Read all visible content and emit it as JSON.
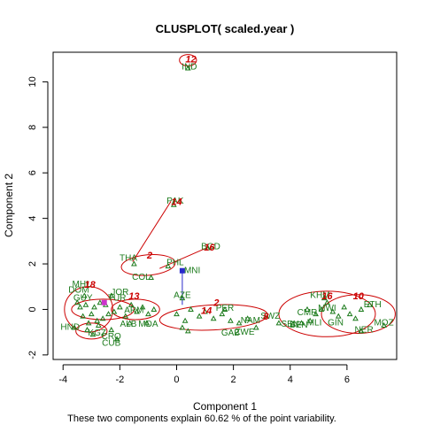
{
  "chart_data": {
    "type": "scatter",
    "title": "CLUSPLOT( scaled.year )",
    "xlabel": "Component 1",
    "ylabel": "Component 2",
    "subtitle": "These two components explain 60.62 % of the point variability.",
    "xlim": [
      -4.35,
      7.75
    ],
    "ylim": [
      -2.2,
      11.3
    ],
    "x_ticks": [
      -4,
      -2,
      0,
      2,
      4,
      6
    ],
    "y_ticks": [
      -2,
      0,
      2,
      4,
      6,
      8,
      10
    ],
    "colors": {
      "points": "#1b7a1b",
      "ellipses": "#cc0000",
      "cluster_labels": "#cc0000",
      "special_point": "#2a2acc",
      "special_point_alt": "#cc33cc"
    },
    "ellipses": [
      {
        "cx": 0.4,
        "cy": 10.95,
        "rx": 0.3,
        "ry": 0.25,
        "angle": 0
      },
      {
        "cx": -1.0,
        "cy": 1.95,
        "rx": 0.95,
        "ry": 0.45,
        "angle": -5
      },
      {
        "cx": -3.1,
        "cy": 0.0,
        "rx": 0.85,
        "ry": 1.0,
        "angle": 0
      },
      {
        "cx": -1.45,
        "cy": 0.0,
        "rx": 0.85,
        "ry": 0.45,
        "angle": 0
      },
      {
        "cx": 1.3,
        "cy": -0.35,
        "rx": 1.9,
        "ry": 0.55,
        "angle": -3
      },
      {
        "cx": 5.3,
        "cy": -0.2,
        "rx": 1.7,
        "ry": 1.0,
        "angle": 0
      },
      {
        "cx": 6.4,
        "cy": -0.2,
        "rx": 1.3,
        "ry": 0.85,
        "angle": 0
      },
      {
        "cx": -3.0,
        "cy": -0.95,
        "rx": 0.55,
        "ry": 0.35,
        "angle": 0
      },
      {
        "cx": -2.6,
        "cy": 0.0,
        "rx": 1.1,
        "ry": 0.45,
        "angle": 0
      }
    ],
    "segments": [
      {
        "x1": -0.2,
        "y1": 4.75,
        "x2": -1.55,
        "y2": 2.1
      },
      {
        "x1": 1.05,
        "y1": 2.7,
        "x2": -0.6,
        "y2": 1.8
      }
    ],
    "blue_segment": {
      "x1": 0.2,
      "y1": 1.8,
      "x2": 0.2,
      "y2": 0.2
    },
    "point_labels": [
      {
        "text": "IND",
        "x": 0.45,
        "y": 10.7
      },
      {
        "text": "PAK",
        "x": -0.05,
        "y": 4.8
      },
      {
        "text": "BGD",
        "x": 1.2,
        "y": 2.8
      },
      {
        "text": "THA",
        "x": -1.7,
        "y": 2.3
      },
      {
        "text": "PHL",
        "x": -0.05,
        "y": 2.1
      },
      {
        "text": "MNI",
        "x": 0.55,
        "y": 1.75
      },
      {
        "text": "COL",
        "x": -1.25,
        "y": 1.45
      },
      {
        "text": "JOR",
        "x": -2.0,
        "y": 0.8
      },
      {
        "text": "AZE",
        "x": 0.2,
        "y": 0.65
      },
      {
        "text": "PER",
        "x": 1.7,
        "y": 0.1
      },
      {
        "text": "KHM",
        "x": 5.05,
        "y": 0.65
      },
      {
        "text": "ETH",
        "x": 6.9,
        "y": 0.25
      },
      {
        "text": "MOZ",
        "x": 7.3,
        "y": -0.55
      },
      {
        "text": "NER",
        "x": 6.6,
        "y": -0.85
      },
      {
        "text": "SWZ",
        "x": 3.3,
        "y": -0.25
      },
      {
        "text": "NAM",
        "x": 2.6,
        "y": -0.45
      },
      {
        "text": "ZWE",
        "x": 2.4,
        "y": -0.95
      },
      {
        "text": "GAB",
        "x": 1.9,
        "y": -1.0
      },
      {
        "text": "ALB",
        "x": -1.7,
        "y": -0.6
      },
      {
        "text": "MDA",
        "x": -1.0,
        "y": -0.6
      },
      {
        "text": "ARM",
        "x": -1.5,
        "y": 0.0
      },
      {
        "text": "MLI",
        "x": 4.85,
        "y": -0.55
      },
      {
        "text": "CMR",
        "x": 4.6,
        "y": -0.1
      },
      {
        "text": "SEN",
        "x": 4.0,
        "y": -0.6
      },
      {
        "text": "BEN",
        "x": 4.3,
        "y": -0.65
      },
      {
        "text": "MWI",
        "x": 5.3,
        "y": 0.1
      },
      {
        "text": "GIN",
        "x": 5.6,
        "y": -0.55
      },
      {
        "text": "MHL",
        "x": -3.35,
        "y": 1.15
      },
      {
        "text": "DOM",
        "x": -3.45,
        "y": 0.9
      },
      {
        "text": "GUY",
        "x": -3.3,
        "y": 0.55
      },
      {
        "text": "HND",
        "x": -3.75,
        "y": -0.75
      },
      {
        "text": "KGZ",
        "x": -2.8,
        "y": -1.0
      },
      {
        "text": "CRO",
        "x": -2.3,
        "y": -1.15
      },
      {
        "text": "CUB",
        "x": -2.3,
        "y": -1.45
      },
      {
        "text": "TUR",
        "x": -2.1,
        "y": 0.55
      }
    ],
    "cluster_labels": [
      {
        "text": "12",
        "x": 0.5,
        "y": 11.0
      },
      {
        "text": "14",
        "x": 0.0,
        "y": 4.75
      },
      {
        "text": "16",
        "x": 1.15,
        "y": 2.75
      },
      {
        "text": "2",
        "x": -0.95,
        "y": 2.4
      },
      {
        "text": "18",
        "x": -3.05,
        "y": 1.1
      },
      {
        "text": "13",
        "x": -1.5,
        "y": 0.6
      },
      {
        "text": "2",
        "x": 1.4,
        "y": 0.3
      },
      {
        "text": "14",
        "x": 1.05,
        "y": -0.05
      },
      {
        "text": "16",
        "x": 5.3,
        "y": 0.6
      },
      {
        "text": "10",
        "x": 6.4,
        "y": 0.6
      },
      {
        "text": "8",
        "x": 3.15,
        "y": -0.3
      }
    ],
    "points_green": [
      [
        -3.6,
        -0.8
      ],
      [
        -3.3,
        -0.3
      ],
      [
        -3.2,
        0.2
      ],
      [
        -3.0,
        -0.2
      ],
      [
        -2.9,
        0.1
      ],
      [
        -2.8,
        -0.5
      ],
      [
        -2.7,
        0.3
      ],
      [
        -3.1,
        -0.6
      ],
      [
        -2.95,
        -1.1
      ],
      [
        -2.6,
        -0.4
      ],
      [
        -2.5,
        0.2
      ],
      [
        -2.4,
        -0.2
      ],
      [
        -3.4,
        0.1
      ],
      [
        -3.25,
        0.6
      ],
      [
        -3.5,
        0.3
      ],
      [
        -2.2,
        -0.1
      ],
      [
        -2.0,
        0.1
      ],
      [
        -1.8,
        -0.3
      ],
      [
        -1.6,
        0.2
      ],
      [
        -1.4,
        -0.1
      ],
      [
        -1.2,
        0.1
      ],
      [
        -1.0,
        -0.2
      ],
      [
        -0.8,
        0.0
      ],
      [
        -2.3,
        -0.9
      ],
      [
        -2.1,
        -1.3
      ],
      [
        -3.15,
        -0.9
      ],
      [
        -2.75,
        -0.7
      ],
      [
        0.0,
        -0.2
      ],
      [
        0.3,
        -0.5
      ],
      [
        0.5,
        0.0
      ],
      [
        0.8,
        -0.3
      ],
      [
        1.0,
        -0.1
      ],
      [
        1.3,
        -0.4
      ],
      [
        1.6,
        -0.2
      ],
      [
        1.9,
        -0.5
      ],
      [
        2.2,
        -0.6
      ],
      [
        2.5,
        -0.4
      ],
      [
        2.8,
        -0.8
      ],
      [
        3.6,
        -0.6
      ],
      [
        0.2,
        -0.8
      ],
      [
        0.4,
        -0.95
      ],
      [
        4.1,
        -0.65
      ],
      [
        4.4,
        -0.6
      ],
      [
        4.7,
        -0.5
      ],
      [
        4.9,
        -0.2
      ],
      [
        5.1,
        0.0
      ],
      [
        5.3,
        0.3
      ],
      [
        5.5,
        -0.1
      ],
      [
        5.7,
        -0.3
      ],
      [
        5.9,
        0.1
      ],
      [
        6.1,
        -0.2
      ],
      [
        6.3,
        -0.4
      ],
      [
        6.5,
        0.0
      ],
      [
        6.8,
        0.2
      ],
      [
        7.3,
        -0.7
      ],
      [
        6.5,
        -0.95
      ],
      [
        5.2,
        0.5
      ],
      [
        4.6,
        0.0
      ],
      [
        0.4,
        10.6
      ],
      [
        -0.1,
        4.6
      ],
      [
        1.1,
        2.7
      ],
      [
        -1.5,
        2.0
      ],
      [
        -0.3,
        1.9
      ],
      [
        -0.9,
        1.4
      ],
      [
        -2.3,
        0.6
      ],
      [
        0.2,
        0.5
      ],
      [
        1.7,
        0.0
      ],
      [
        -1.65,
        -0.6
      ],
      [
        -1.05,
        -0.6
      ]
    ],
    "points_blue": [
      [
        0.2,
        1.7
      ]
    ],
    "points_magenta": [
      [
        -2.55,
        0.3
      ]
    ]
  }
}
